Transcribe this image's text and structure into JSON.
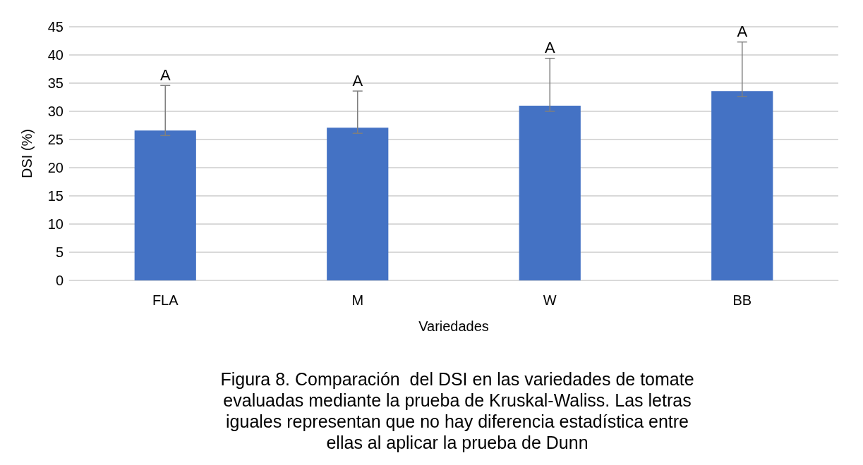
{
  "chart_data": {
    "type": "bar",
    "categories": [
      "FLA",
      "M",
      "W",
      "BB"
    ],
    "values": [
      26.6,
      27.1,
      31.0,
      33.6
    ],
    "color": "#4472c4",
    "errors": [
      [
        25.7,
        34.6
      ],
      [
        26.1,
        33.6
      ],
      [
        30.0,
        39.4
      ],
      [
        32.6,
        42.3
      ]
    ],
    "ylim": [
      0,
      45
    ],
    "yticks": [
      0,
      5,
      10,
      15,
      20,
      25,
      30,
      35,
      40,
      45
    ],
    "grid": "y",
    "xlabel": "Variedades",
    "ylabel": "DSI (%)",
    "annotations": [
      {
        "text": "A",
        "x": "FLA",
        "y": 34.6
      },
      {
        "text": "A",
        "x": "M",
        "y": 33.6
      },
      {
        "text": "A",
        "x": "W",
        "y": 39.4
      },
      {
        "text": "A",
        "x": "BB",
        "y": 42.3
      },
      "Figura 8. Comparación  del DSI en las variedades de tomate\nevaluadas mediante la prueba de Kruskal-Waliss. Las letras\niguales representan que no hay diferencia estadística entre\nellas al aplicar la prueba de Dunn"
    ]
  }
}
